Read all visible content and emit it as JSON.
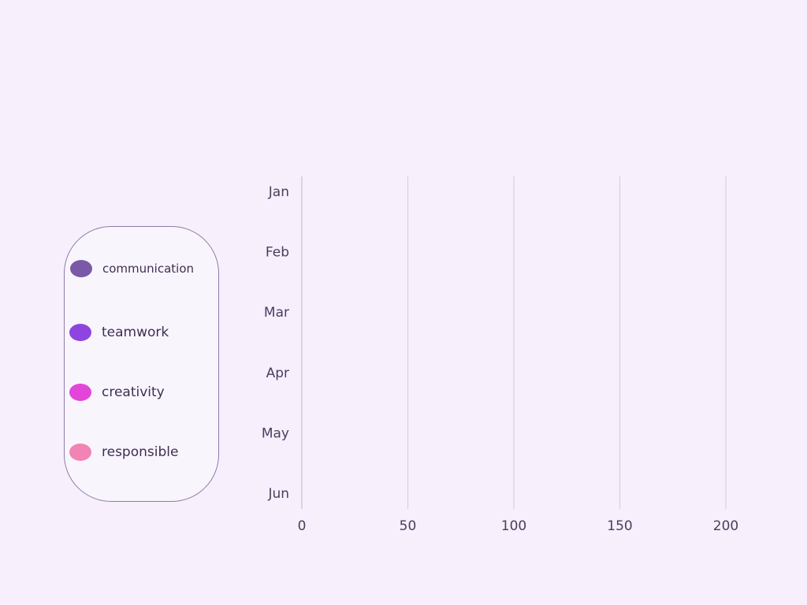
{
  "chart_data": {
    "type": "bar",
    "orientation": "horizontal",
    "categories": [
      "Jan",
      "Feb",
      "Mar",
      "Apr",
      "May",
      "Jun"
    ],
    "x_ticks": [
      0,
      50,
      100,
      150,
      200
    ],
    "xlim": [
      0,
      200
    ],
    "grid": true,
    "legend_position": "left",
    "series": [
      {
        "name": "communication",
        "color": "#7a5aa6",
        "values": [
          0,
          0,
          0,
          0,
          0,
          0
        ]
      },
      {
        "name": "teamwork",
        "color": "#8e45e0",
        "values": [
          0,
          0,
          0,
          0,
          0,
          0
        ]
      },
      {
        "name": "creativity",
        "color": "#e245d8",
        "values": [
          0,
          0,
          0,
          0,
          0,
          0
        ]
      },
      {
        "name": "responsible",
        "color": "#f283b5",
        "values": [
          0,
          0,
          0,
          0,
          0,
          0
        ]
      }
    ]
  }
}
